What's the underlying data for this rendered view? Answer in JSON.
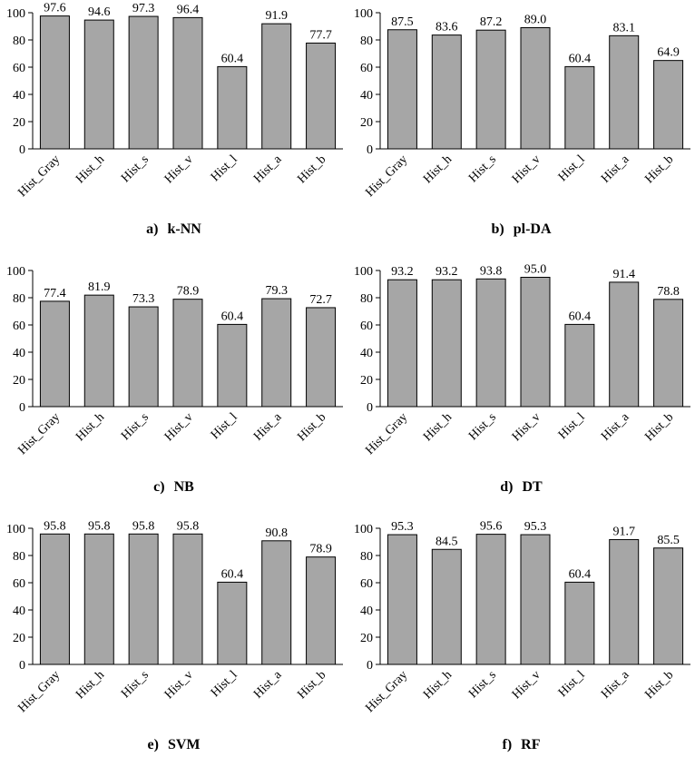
{
  "chart_data": [
    {
      "type": "bar",
      "panel_label": "a)",
      "title": "k-NN",
      "categories": [
        "Hist_Gray",
        "Hist_h",
        "Hist_s",
        "Hist_v",
        "Hist_l",
        "Hist_a",
        "Hist_b"
      ],
      "values": [
        97.6,
        94.6,
        97.3,
        96.4,
        60.4,
        91.9,
        77.7
      ],
      "value_labels": [
        "97.6",
        "94.6",
        "97.3",
        "96.4",
        "60.4",
        "91.9",
        "77.7"
      ],
      "yticks": [
        "0",
        "20",
        "40",
        "60",
        "80",
        "100"
      ],
      "ylim": [
        0,
        100
      ],
      "xlabel": "",
      "ylabel": "",
      "grid": false,
      "bar_color": "#a6a6a6"
    },
    {
      "type": "bar",
      "panel_label": "b)",
      "title": "pl-DA",
      "categories": [
        "Hist_Gray",
        "Hist_h",
        "Hist_s",
        "Hist_v",
        "Hist_l",
        "Hist_a",
        "Hist_b"
      ],
      "values": [
        87.5,
        83.6,
        87.2,
        89.0,
        60.4,
        83.1,
        64.9
      ],
      "value_labels": [
        "87.5",
        "83.6",
        "87.2",
        "89.0",
        "60.4",
        "83.1",
        "64.9"
      ],
      "yticks": [
        "0",
        "20",
        "40",
        "60",
        "80",
        "100"
      ],
      "ylim": [
        0,
        100
      ],
      "xlabel": "",
      "ylabel": "",
      "grid": false,
      "bar_color": "#a6a6a6"
    },
    {
      "type": "bar",
      "panel_label": "c)",
      "title": "NB",
      "categories": [
        "Hist_Gray",
        "Hist_h",
        "Hist_s",
        "Hist_v",
        "Hist_l",
        "Hist_a",
        "Hist_b"
      ],
      "values": [
        77.4,
        81.9,
        73.3,
        78.9,
        60.4,
        79.3,
        72.7
      ],
      "value_labels": [
        "77.4",
        "81.9",
        "73.3",
        "78.9",
        "60.4",
        "79.3",
        "72.7"
      ],
      "yticks": [
        "0",
        "20",
        "40",
        "60",
        "80",
        "100"
      ],
      "ylim": [
        0,
        100
      ],
      "xlabel": "",
      "ylabel": "",
      "grid": false,
      "bar_color": "#a6a6a6"
    },
    {
      "type": "bar",
      "panel_label": "d)",
      "title": "DT",
      "categories": [
        "Hist_Gray",
        "Hist_h",
        "Hist_s",
        "Hist_v",
        "Hist_l",
        "Hist_a",
        "Hist_b"
      ],
      "values": [
        93.2,
        93.2,
        93.8,
        95.0,
        60.4,
        91.4,
        78.8
      ],
      "value_labels": [
        "93.2",
        "93.2",
        "93.8",
        "95.0",
        "60.4",
        "91.4",
        "78.8"
      ],
      "yticks": [
        "0",
        "20",
        "40",
        "60",
        "80",
        "100"
      ],
      "ylim": [
        0,
        100
      ],
      "xlabel": "",
      "ylabel": "",
      "grid": false,
      "bar_color": "#a6a6a6"
    },
    {
      "type": "bar",
      "panel_label": "e)",
      "title": "SVM",
      "categories": [
        "Hist_Gray",
        "Hist_h",
        "Hist_s",
        "Hist_v",
        "Hist_l",
        "Hist_a",
        "Hist_b"
      ],
      "values": [
        95.8,
        95.8,
        95.8,
        95.8,
        60.4,
        90.8,
        78.9
      ],
      "value_labels": [
        "95.8",
        "95.8",
        "95.8",
        "95.8",
        "60.4",
        "90.8",
        "78.9"
      ],
      "yticks": [
        "0",
        "20",
        "40",
        "60",
        "80",
        "100"
      ],
      "ylim": [
        0,
        100
      ],
      "xlabel": "",
      "ylabel": "",
      "grid": false,
      "bar_color": "#a6a6a6"
    },
    {
      "type": "bar",
      "panel_label": "f)",
      "title": "RF",
      "categories": [
        "Hist_Gray",
        "Hist_h",
        "Hist_s",
        "Hist_v",
        "Hist_l",
        "Hist_a",
        "Hist_b"
      ],
      "values": [
        95.3,
        84.5,
        95.6,
        95.3,
        60.4,
        91.7,
        85.5
      ],
      "value_labels": [
        "95.3",
        "84.5",
        "95.6",
        "95.3",
        "60.4",
        "91.7",
        "85.5"
      ],
      "yticks": [
        "0",
        "20",
        "40",
        "60",
        "80",
        "100"
      ],
      "ylim": [
        0,
        100
      ],
      "xlabel": "",
      "ylabel": "",
      "grid": false,
      "bar_color": "#a6a6a6"
    }
  ]
}
